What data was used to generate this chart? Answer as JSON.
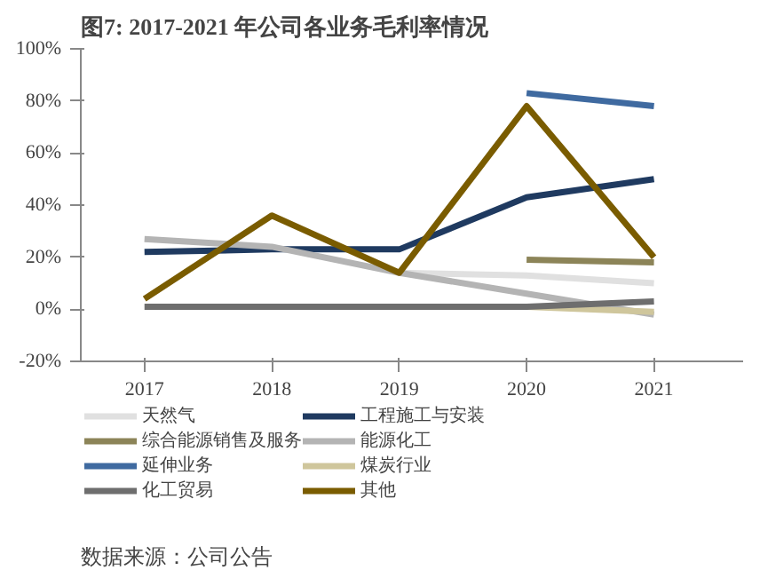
{
  "chart_data": {
    "type": "line",
    "title": "图7:  2017-2021 年公司各业务毛利率情况",
    "categories": [
      "2017",
      "2018",
      "2019",
      "2020",
      "2021"
    ],
    "series": [
      {
        "name": "天然气",
        "color": "#e0e0e0",
        "values": [
          null,
          null,
          14,
          13,
          10
        ]
      },
      {
        "name": "工程施工与安装",
        "color": "#1f3a60",
        "values": [
          22,
          23,
          23,
          43,
          50
        ]
      },
      {
        "name": "综合能源销售及服务",
        "color": "#8c8458",
        "values": [
          null,
          null,
          null,
          19,
          18
        ]
      },
      {
        "name": "能源化工",
        "color": "#b4b4b4",
        "values": [
          27,
          24,
          14,
          6,
          -2
        ]
      },
      {
        "name": "延伸业务",
        "color": "#3f6aa0",
        "values": [
          null,
          null,
          null,
          83,
          78
        ]
      },
      {
        "name": "煤炭行业",
        "color": "#cfc69c",
        "values": [
          null,
          null,
          null,
          1,
          -1
        ]
      },
      {
        "name": "化工贸易",
        "color": "#6e6e6e",
        "values": [
          1,
          1,
          1,
          1,
          3
        ]
      },
      {
        "name": "其他",
        "color": "#7a5c00",
        "values": [
          4,
          36,
          14,
          78,
          20
        ]
      }
    ],
    "ylim": [
      -20,
      100
    ],
    "yticks": [
      {
        "value": -20,
        "label": "-20%"
      },
      {
        "value": 0,
        "label": "0%"
      },
      {
        "value": 20,
        "label": "20%"
      },
      {
        "value": 40,
        "label": "40%"
      },
      {
        "value": 60,
        "label": "60%"
      },
      {
        "value": 80,
        "label": "80%"
      },
      {
        "value": 100,
        "label": "100%"
      }
    ],
    "grid": false,
    "legend": "bottom",
    "marker": "none",
    "line_style": "solid",
    "annotations": [
      "数据来源：公司公告"
    ]
  }
}
